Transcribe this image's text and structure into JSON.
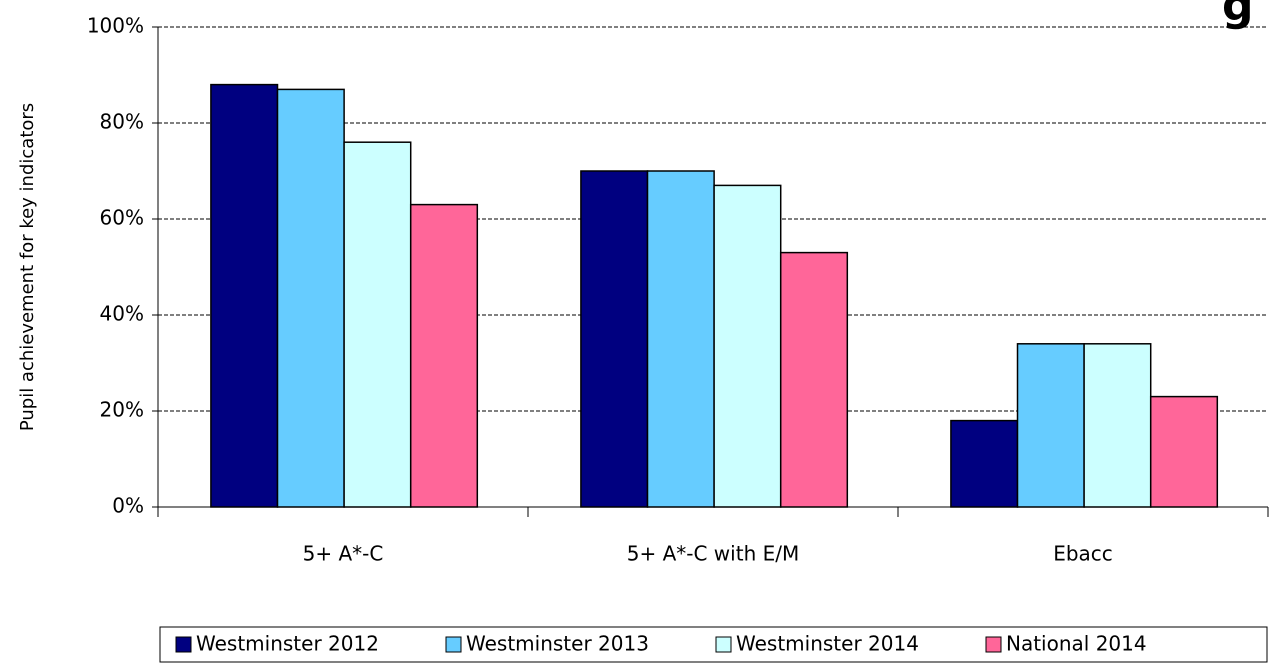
{
  "chart_data": {
    "type": "bar",
    "title": "g",
    "y_label": "Pupil achievement for key indicators",
    "categories": [
      "5+ A*-C",
      "5+ A*-C with E/M",
      "Ebacc"
    ],
    "series": [
      {
        "name": "Westminster 2012",
        "color": "#000080",
        "values": [
          88,
          70,
          18
        ]
      },
      {
        "name": "Westminster 2013",
        "color": "#66ccff",
        "values": [
          87,
          70,
          34
        ]
      },
      {
        "name": "Westminster 2014",
        "color": "#ccffff",
        "values": [
          76,
          67,
          34
        ]
      },
      {
        "name": "National 2014",
        "color": "#ff6699",
        "values": [
          63,
          53,
          23
        ]
      }
    ],
    "ylim": [
      0,
      100
    ],
    "yticks": [
      {
        "value": 0,
        "label": "0%"
      },
      {
        "value": 20,
        "label": "20%"
      },
      {
        "value": 40,
        "label": "40%"
      },
      {
        "value": 60,
        "label": "60%"
      },
      {
        "value": 80,
        "label": "80%"
      },
      {
        "value": 100,
        "label": "100%"
      }
    ],
    "grid": true,
    "legend": "bottom"
  }
}
